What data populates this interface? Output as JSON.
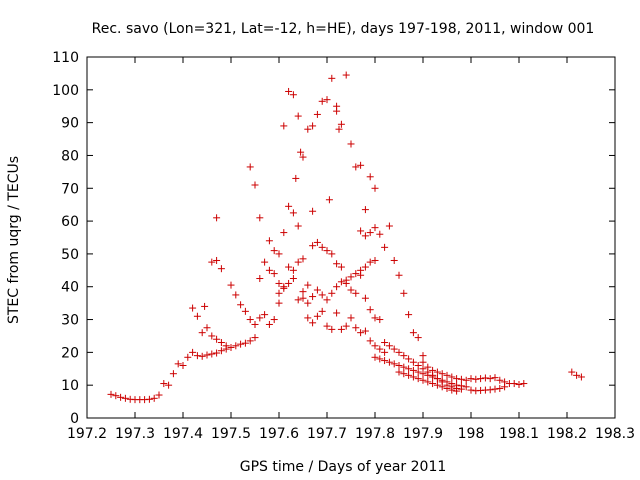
{
  "chart_data": {
    "type": "scatter",
    "title": "Rec. savo (Lon=321, Lat=-12, h=HE), days 197-198, 2011, window 001",
    "xlabel": "GPS time / Days of year 2011",
    "ylabel": "STEC from uqrg / TECUs",
    "xlim": [
      197.2,
      198.3
    ],
    "ylim": [
      0,
      110
    ],
    "xticks": [
      "197.2",
      "197.3",
      "197.4",
      "197.5",
      "197.6",
      "197.7",
      "197.8",
      "197.9",
      "198",
      "198.1",
      "198.2",
      "198.3"
    ],
    "yticks": [
      "0",
      "10",
      "20",
      "30",
      "40",
      "50",
      "60",
      "70",
      "80",
      "90",
      "100",
      "110"
    ],
    "grid": false,
    "legend": "none",
    "point_color": "#cc0000",
    "marker": "plus",
    "series": [
      {
        "points": [
          [
            197.25,
            7.2
          ],
          [
            197.26,
            6.8
          ],
          [
            197.27,
            6.3
          ],
          [
            197.28,
            6.0
          ],
          [
            197.29,
            5.7
          ],
          [
            197.3,
            5.6
          ],
          [
            197.31,
            5.6
          ],
          [
            197.32,
            5.6
          ],
          [
            197.33,
            5.7
          ],
          [
            197.34,
            6.0
          ],
          [
            197.35,
            7.0
          ],
          [
            197.36,
            10.5
          ],
          [
            197.37,
            10.0
          ],
          [
            197.38,
            13.5
          ],
          [
            197.39,
            16.5
          ],
          [
            197.4,
            16.0
          ],
          [
            197.41,
            18.5
          ],
          [
            197.42,
            20.0
          ],
          [
            197.43,
            19.0
          ],
          [
            197.44,
            18.8
          ],
          [
            197.45,
            19.2
          ],
          [
            197.46,
            19.5
          ],
          [
            197.47,
            19.8
          ],
          [
            197.48,
            20.5
          ],
          [
            197.49,
            21.0
          ],
          [
            197.5,
            21.5
          ],
          [
            197.51,
            22.0
          ],
          [
            197.52,
            22.5
          ],
          [
            197.53,
            22.8
          ],
          [
            197.54,
            23.5
          ],
          [
            197.55,
            24.5
          ],
          [
            197.42,
            33.5
          ],
          [
            197.43,
            31.0
          ],
          [
            197.44,
            26.0
          ],
          [
            197.445,
            34.0
          ],
          [
            197.45,
            27.5
          ],
          [
            197.46,
            25.0
          ],
          [
            197.47,
            24.0
          ],
          [
            197.48,
            23.0
          ],
          [
            197.49,
            22.0
          ],
          [
            197.5,
            40.5
          ],
          [
            197.51,
            37.5
          ],
          [
            197.52,
            34.5
          ],
          [
            197.53,
            32.5
          ],
          [
            197.54,
            30.0
          ],
          [
            197.55,
            28.5
          ],
          [
            197.56,
            30.5
          ],
          [
            197.57,
            31.5
          ],
          [
            197.58,
            28.5
          ],
          [
            197.59,
            30.0
          ],
          [
            197.6,
            35.0
          ],
          [
            197.46,
            47.5
          ],
          [
            197.47,
            48.0
          ],
          [
            197.47,
            61.0
          ],
          [
            197.48,
            45.5
          ],
          [
            197.54,
            76.5
          ],
          [
            197.55,
            71.0
          ],
          [
            197.56,
            61.0
          ],
          [
            197.56,
            42.5
          ],
          [
            197.57,
            47.5
          ],
          [
            197.58,
            54.0
          ],
          [
            197.58,
            45.0
          ],
          [
            197.59,
            51.0
          ],
          [
            197.59,
            44.0
          ],
          [
            197.6,
            50.0
          ],
          [
            197.6,
            41.0
          ],
          [
            197.61,
            56.5
          ],
          [
            197.61,
            40.0
          ],
          [
            197.62,
            64.5
          ],
          [
            197.62,
            46.0
          ],
          [
            197.63,
            45.0
          ],
          [
            197.63,
            62.5
          ],
          [
            197.64,
            58.5
          ],
          [
            197.64,
            47.5
          ],
          [
            197.65,
            48.5
          ],
          [
            197.65,
            36.5
          ],
          [
            197.61,
            89.0
          ],
          [
            197.62,
            99.5
          ],
          [
            197.63,
            98.5
          ],
          [
            197.635,
            73.0
          ],
          [
            197.64,
            92.0
          ],
          [
            197.645,
            81.0
          ],
          [
            197.65,
            79.5
          ],
          [
            197.66,
            88.0
          ],
          [
            197.67,
            89.0
          ],
          [
            197.67,
            63.0
          ],
          [
            197.68,
            92.5
          ],
          [
            197.69,
            96.5
          ],
          [
            197.7,
            97.0
          ],
          [
            197.705,
            66.5
          ],
          [
            197.71,
            103.5
          ],
          [
            197.72,
            95.0
          ],
          [
            197.72,
            93.5
          ],
          [
            197.725,
            88.0
          ],
          [
            197.73,
            89.5
          ],
          [
            197.74,
            104.5
          ],
          [
            197.75,
            83.5
          ],
          [
            197.76,
            76.5
          ],
          [
            197.77,
            77.0
          ],
          [
            197.78,
            63.5
          ],
          [
            197.79,
            73.5
          ],
          [
            197.8,
            70.0
          ],
          [
            197.6,
            38.0
          ],
          [
            197.61,
            39.5
          ],
          [
            197.62,
            41.0
          ],
          [
            197.63,
            42.5
          ],
          [
            197.64,
            36.0
          ],
          [
            197.65,
            38.5
          ],
          [
            197.66,
            40.5
          ],
          [
            197.67,
            52.5
          ],
          [
            197.68,
            53.5
          ],
          [
            197.69,
            52.0
          ],
          [
            197.7,
            51.0
          ],
          [
            197.71,
            50.0
          ],
          [
            197.72,
            47.0
          ],
          [
            197.73,
            46.0
          ],
          [
            197.74,
            41.0
          ],
          [
            197.75,
            39.0
          ],
          [
            197.76,
            38.0
          ],
          [
            197.77,
            43.5
          ],
          [
            197.78,
            36.5
          ],
          [
            197.79,
            33.0
          ],
          [
            197.8,
            30.5
          ],
          [
            197.81,
            30.0
          ],
          [
            197.66,
            35.0
          ],
          [
            197.67,
            37.0
          ],
          [
            197.68,
            39.0
          ],
          [
            197.69,
            37.5
          ],
          [
            197.7,
            36.0
          ],
          [
            197.71,
            38.0
          ],
          [
            197.72,
            40.0
          ],
          [
            197.73,
            41.5
          ],
          [
            197.74,
            42.0
          ],
          [
            197.75,
            43.0
          ],
          [
            197.76,
            44.0
          ],
          [
            197.77,
            45.0
          ],
          [
            197.78,
            46.0
          ],
          [
            197.79,
            47.5
          ],
          [
            197.8,
            48.0
          ],
          [
            197.66,
            30.5
          ],
          [
            197.67,
            29.0
          ],
          [
            197.68,
            31.0
          ],
          [
            197.69,
            32.5
          ],
          [
            197.7,
            28.0
          ],
          [
            197.71,
            27.0
          ],
          [
            197.72,
            32.0
          ],
          [
            197.73,
            27.0
          ],
          [
            197.74,
            28.0
          ],
          [
            197.75,
            30.5
          ],
          [
            197.76,
            27.5
          ],
          [
            197.77,
            26.0
          ],
          [
            197.78,
            26.5
          ],
          [
            197.79,
            23.5
          ],
          [
            197.8,
            22.0
          ],
          [
            197.81,
            21.0
          ],
          [
            197.82,
            20.0
          ],
          [
            197.77,
            57.0
          ],
          [
            197.78,
            55.5
          ],
          [
            197.79,
            56.5
          ],
          [
            197.8,
            58.0
          ],
          [
            197.81,
            56.0
          ],
          [
            197.82,
            52.0
          ],
          [
            197.83,
            58.5
          ],
          [
            197.84,
            48.0
          ],
          [
            197.85,
            43.5
          ],
          [
            197.86,
            38.0
          ],
          [
            197.87,
            31.5
          ],
          [
            197.88,
            26.0
          ],
          [
            197.89,
            24.5
          ],
          [
            197.9,
            19.0
          ],
          [
            197.8,
            18.5
          ],
          [
            197.81,
            18.0
          ],
          [
            197.82,
            17.5
          ],
          [
            197.83,
            17.0
          ],
          [
            197.84,
            16.5
          ],
          [
            197.85,
            16.0
          ],
          [
            197.86,
            15.5
          ],
          [
            197.87,
            15.0
          ],
          [
            197.88,
            14.5
          ],
          [
            197.89,
            14.0
          ],
          [
            197.9,
            13.5
          ],
          [
            197.91,
            13.0
          ],
          [
            197.92,
            12.5
          ],
          [
            197.93,
            12.0
          ],
          [
            197.94,
            11.5
          ],
          [
            197.95,
            11.0
          ],
          [
            197.96,
            10.5
          ],
          [
            197.97,
            10.0
          ],
          [
            197.98,
            9.8
          ],
          [
            197.99,
            9.5
          ],
          [
            197.82,
            23.0
          ],
          [
            197.83,
            22.0
          ],
          [
            197.84,
            21.0
          ],
          [
            197.85,
            20.0
          ],
          [
            197.86,
            19.0
          ],
          [
            197.87,
            18.0
          ],
          [
            197.88,
            17.0
          ],
          [
            197.89,
            16.0
          ],
          [
            197.9,
            15.0
          ],
          [
            197.91,
            14.0
          ],
          [
            197.92,
            13.0
          ],
          [
            197.93,
            12.0
          ],
          [
            197.94,
            11.0
          ],
          [
            197.95,
            10.0
          ],
          [
            197.96,
            9.5
          ],
          [
            197.97,
            9.0
          ],
          [
            197.98,
            8.8
          ],
          [
            197.85,
            14.0
          ],
          [
            197.86,
            13.5
          ],
          [
            197.87,
            13.0
          ],
          [
            197.88,
            12.5
          ],
          [
            197.89,
            12.0
          ],
          [
            197.9,
            11.5
          ],
          [
            197.91,
            11.0
          ],
          [
            197.92,
            10.5
          ],
          [
            197.93,
            10.0
          ],
          [
            197.94,
            9.5
          ],
          [
            197.95,
            9.0
          ],
          [
            197.96,
            8.5
          ],
          [
            197.97,
            8.2
          ],
          [
            197.9,
            17.0
          ],
          [
            197.91,
            15.5
          ],
          [
            197.92,
            14.5
          ],
          [
            197.93,
            14.0
          ],
          [
            197.94,
            13.5
          ],
          [
            197.95,
            13.0
          ],
          [
            197.96,
            12.5
          ],
          [
            197.97,
            12.0
          ],
          [
            197.98,
            11.8
          ],
          [
            197.99,
            11.5
          ],
          [
            198.0,
            12.0
          ],
          [
            198.01,
            11.8
          ],
          [
            198.02,
            12.0
          ],
          [
            198.03,
            12.2
          ],
          [
            198.04,
            12.0
          ],
          [
            198.05,
            12.3
          ],
          [
            198.06,
            11.5
          ],
          [
            198.07,
            11.0
          ],
          [
            198.08,
            10.5
          ],
          [
            198.09,
            10.5
          ],
          [
            198.1,
            10.2
          ],
          [
            198.11,
            10.5
          ],
          [
            198.0,
            8.5
          ],
          [
            198.01,
            8.3
          ],
          [
            198.02,
            8.4
          ],
          [
            198.03,
            8.5
          ],
          [
            198.04,
            8.6
          ],
          [
            198.05,
            8.8
          ],
          [
            198.06,
            9.0
          ],
          [
            198.07,
            9.5
          ],
          [
            198.21,
            14.0
          ],
          [
            198.22,
            13.0
          ],
          [
            198.23,
            12.5
          ]
        ]
      }
    ]
  }
}
